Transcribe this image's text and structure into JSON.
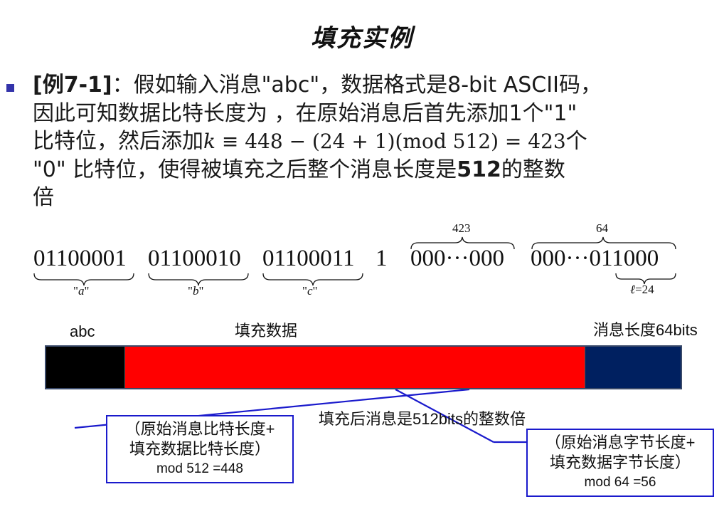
{
  "title": "填充实例",
  "paragraph": {
    "label": "[例7-1]",
    "colon": "：",
    "line1_rest": "假如输入消息\"abc\"，数据格式是8-bit ASCII码，",
    "line2": "因此可知数据比特长度为 ，在原始消息后首先添加1个\"1\"",
    "line3_pre": "比特位，然后添加",
    "line3_k": "k",
    "line3_formula": " ≡ 448 − (24 + 1)(mod 512) = 423",
    "line3_post": "个",
    "line4_pre": "\"0\" 比特位，使得被填充之后整个消息长度是",
    "line4_bold": "512",
    "line4_post": "的整数",
    "line5": "倍"
  },
  "bits": {
    "byte_a": "01100001",
    "byte_b": "01100010",
    "byte_c": "01100011",
    "one_bit": "1",
    "zeros": "000···000",
    "length_prefix": "000···0",
    "length_tail": "11000",
    "label_a_char": "a",
    "label_b_char": "b",
    "label_c_char": "c",
    "zeros_count": "423",
    "length_count": "64",
    "ell_symbol": "ℓ",
    "ell_value": "=24"
  },
  "bar": {
    "label_abc": "abc",
    "label_fill": "填充数据",
    "label_len_cn": "消息长度",
    "label_len_bits": "64bits",
    "caption": "填充后消息是512bits的整数倍",
    "colors": {
      "abc": "#000000",
      "fill": "#ff0000",
      "length": "#002060",
      "note_border": "#1a1acc"
    }
  },
  "note_left": {
    "line1": "（原始消息比特长度+",
    "line2": "填充数据比特长度）",
    "line3": "mod 512 =448"
  },
  "note_right": {
    "line1": "（原始消息字节长度+",
    "line2": "填充数据字节长度）",
    "line3": "mod 64 =56"
  }
}
